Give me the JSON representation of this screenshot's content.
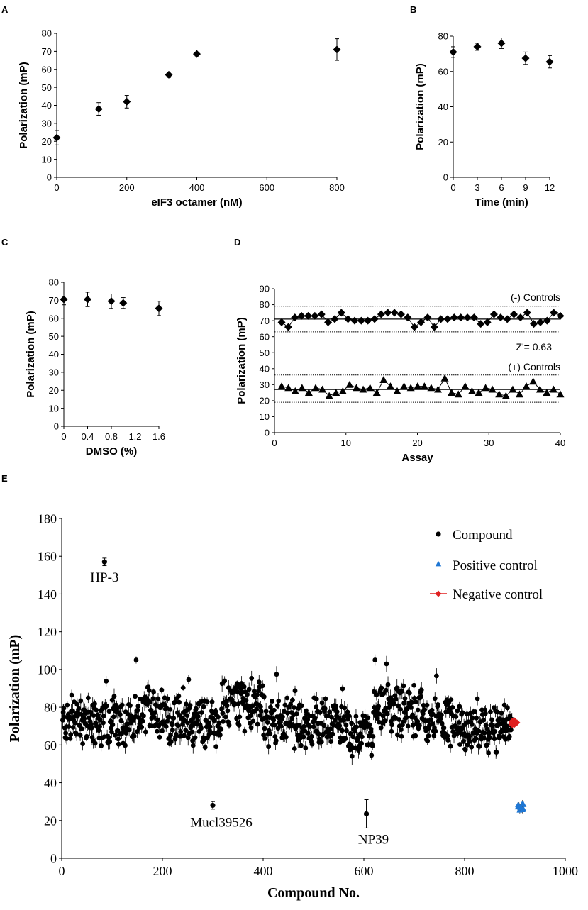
{
  "chart_data": [
    {
      "panel": "A",
      "type": "scatter",
      "xlabel": "eIF3 octamer (nM)",
      "ylabel": "Polarization (mP)",
      "xlim": [
        0,
        800
      ],
      "ylim": [
        0,
        80
      ],
      "xticks": [
        0,
        200,
        400,
        600,
        800
      ],
      "yticks": [
        0,
        10,
        20,
        30,
        40,
        50,
        60,
        70,
        80
      ],
      "marker": "diamond",
      "points": [
        {
          "x": 0,
          "y": 22,
          "err": 4
        },
        {
          "x": 120,
          "y": 38,
          "err": 3.5
        },
        {
          "x": 200,
          "y": 42,
          "err": 3.5
        },
        {
          "x": 320,
          "y": 57,
          "err": 1.5
        },
        {
          "x": 400,
          "y": 68.5,
          "err": 1
        },
        {
          "x": 800,
          "y": 71,
          "err": 6
        }
      ]
    },
    {
      "panel": "B",
      "type": "scatter",
      "xlabel": "Time (min)",
      "ylabel": "Polarization (mP)",
      "xlim": [
        0,
        12
      ],
      "ylim": [
        0,
        80
      ],
      "xticks": [
        0,
        3,
        6,
        9,
        12
      ],
      "yticks": [
        0,
        20,
        40,
        60,
        80
      ],
      "marker": "diamond",
      "points": [
        {
          "x": 0,
          "y": 71,
          "err": 3
        },
        {
          "x": 3,
          "y": 74,
          "err": 2
        },
        {
          "x": 6,
          "y": 76,
          "err": 3
        },
        {
          "x": 9,
          "y": 67.5,
          "err": 3.5
        },
        {
          "x": 12,
          "y": 65.5,
          "err": 3.5
        }
      ]
    },
    {
      "panel": "C",
      "type": "scatter",
      "xlabel": "DMSO (%)",
      "ylabel": "Polarization (mP)",
      "xlim": [
        0,
        1.6
      ],
      "ylim": [
        0,
        80
      ],
      "xticks": [
        0,
        0.4,
        0.8,
        1.2,
        1.6
      ],
      "yticks": [
        0,
        10,
        20,
        30,
        40,
        50,
        60,
        70,
        80
      ],
      "marker": "diamond",
      "points": [
        {
          "x": 0,
          "y": 70.5,
          "err": 3
        },
        {
          "x": 0.4,
          "y": 70.5,
          "err": 4
        },
        {
          "x": 0.8,
          "y": 69.5,
          "err": 4
        },
        {
          "x": 1.0,
          "y": 68.5,
          "err": 3
        },
        {
          "x": 1.6,
          "y": 65.5,
          "err": 4
        }
      ]
    },
    {
      "panel": "D",
      "type": "scatter",
      "xlabel": "Assay",
      "ylabel": "Polarization (mP)",
      "xlim": [
        0,
        40
      ],
      "ylim": [
        0,
        90
      ],
      "xticks": [
        0,
        10,
        20,
        30,
        40
      ],
      "yticks": [
        0,
        10,
        20,
        30,
        40,
        50,
        60,
        70,
        80,
        90
      ],
      "series": [
        {
          "name": "(-) Controls",
          "marker": "diamond",
          "values": [
            69,
            66,
            72,
            73,
            73,
            73,
            74,
            69,
            71,
            75,
            71,
            70,
            70,
            70,
            71,
            74,
            75,
            75,
            74,
            72,
            66,
            69,
            72,
            66,
            71,
            71,
            72,
            72,
            72,
            72,
            68,
            69,
            74,
            72,
            71,
            74,
            72,
            75,
            68,
            69,
            70,
            75,
            73
          ],
          "mean": 71,
          "upper": 79,
          "lower": 63
        },
        {
          "name": "(+) Controls",
          "marker": "triangle",
          "values": [
            29,
            28,
            26,
            28,
            25,
            28,
            27,
            23,
            25,
            26,
            30,
            28,
            27,
            28,
            25,
            33,
            29,
            26,
            29,
            28,
            29,
            29,
            28,
            27,
            34,
            25,
            24,
            29,
            26,
            25,
            28,
            27,
            24,
            23,
            27,
            24,
            29,
            32,
            27,
            25,
            27,
            24
          ],
          "mean": 27,
          "upper": 36,
          "lower": 19
        }
      ],
      "annotations": [
        "(-) Controls",
        "Z'= 0.63",
        "(+) Controls"
      ]
    },
    {
      "panel": "E",
      "type": "scatter",
      "xlabel": "Compound No.",
      "ylabel": "Polarization (mP)",
      "xlim": [
        0,
        1000
      ],
      "ylim": [
        0,
        180
      ],
      "xticks": [
        0,
        200,
        400,
        600,
        800,
        1000
      ],
      "yticks": [
        0,
        20,
        40,
        60,
        80,
        100,
        120,
        140,
        160,
        180
      ],
      "legend_position": "top-right",
      "series": [
        {
          "name": "Compound",
          "marker": "circle",
          "color": "#000000",
          "n_points": 900,
          "typical_range": [
            50,
            100
          ]
        },
        {
          "name": "Positive control",
          "marker": "triangle",
          "color": "#1f77d4",
          "x_range": [
            905,
            918
          ],
          "y_range": [
            25,
            29
          ]
        },
        {
          "name": "Negative control",
          "marker": "diamond",
          "color": "#e02020",
          "x_range": [
            893,
            905
          ],
          "y_range": [
            70,
            73
          ]
        }
      ],
      "labeled_points": [
        {
          "label": "HP-3",
          "x": 85,
          "y": 157,
          "err": 2
        },
        {
          "label": "Mucl39526",
          "x": 300,
          "y": 28,
          "err": 2
        },
        {
          "label": "NP39",
          "x": 605,
          "y": 23.5,
          "err": 7.5
        }
      ]
    }
  ]
}
